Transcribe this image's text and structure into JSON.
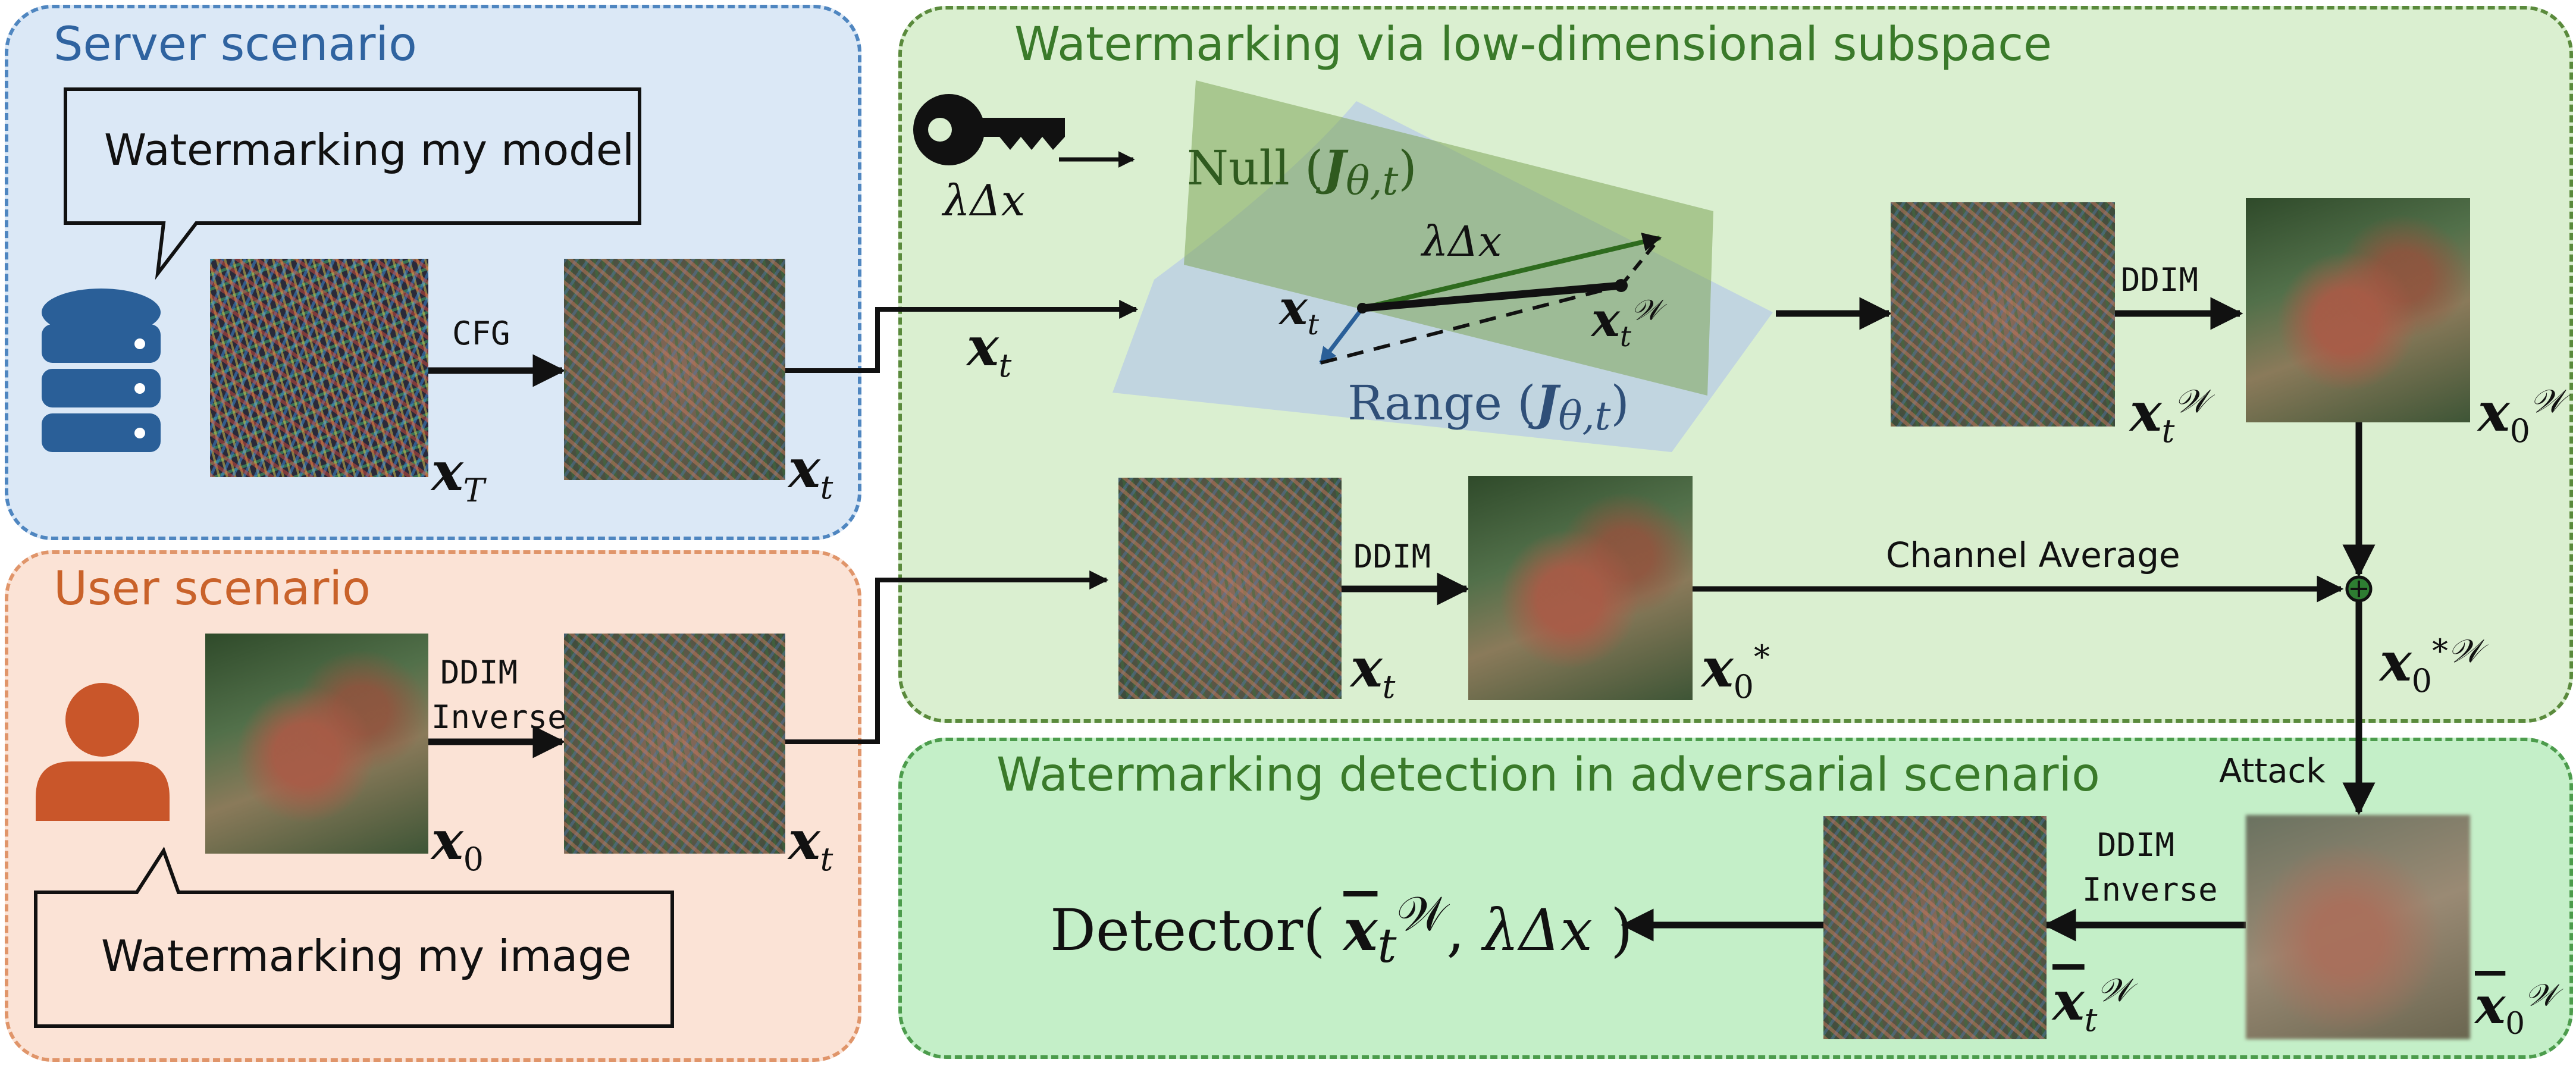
{
  "panels": {
    "server_title": "Server scenario",
    "user_title": "User scenario",
    "watermark_title": "Watermarking via low-dimensional subspace",
    "detection_title": "Watermarking detection in adversarial scenario"
  },
  "bubbles": {
    "server": "Watermarking my model",
    "user": "Watermarking my image"
  },
  "arrow_labels": {
    "cfg": "CFG",
    "ddim_inverse_user_1": "DDIM",
    "ddim_inverse_user_2": "Inverse",
    "ddim_top": "DDIM",
    "ddim_mid": "DDIM",
    "channel_average": "Channel Average",
    "attack": "Attack",
    "ddim_inverse_det_1": "DDIM",
    "ddim_inverse_det_2": "Inverse"
  },
  "math": {
    "x_T": "x",
    "x_T_sub": "T",
    "x_t": "x",
    "t_sub": "t",
    "x_0": "x",
    "zero_sub": "0",
    "lambda_dx": "λΔx",
    "null_prefix": "Null (",
    "range_prefix": "Range (",
    "J": "J",
    "J_sub": "θ,t",
    "close_paren": ")",
    "W_sup": "𝒲",
    "star_sup": "*",
    "star_W_sup": "*𝒲",
    "detector_prefix": "Detector(",
    "detector_sep": ",",
    "detector_suffix": ")"
  },
  "colors": {
    "server_bg": "#dbe8f6",
    "user_bg": "#fbe3d6",
    "watermark_bg": "#daefd0",
    "detection_bg": "#c4efc8",
    "db_icon": "#2a5f98",
    "user_icon": "#c9562a",
    "null_plane": "#8fb36a",
    "range_plane": "#a8c0e0"
  },
  "icons": [
    "database-icon",
    "user-icon",
    "key-icon"
  ]
}
